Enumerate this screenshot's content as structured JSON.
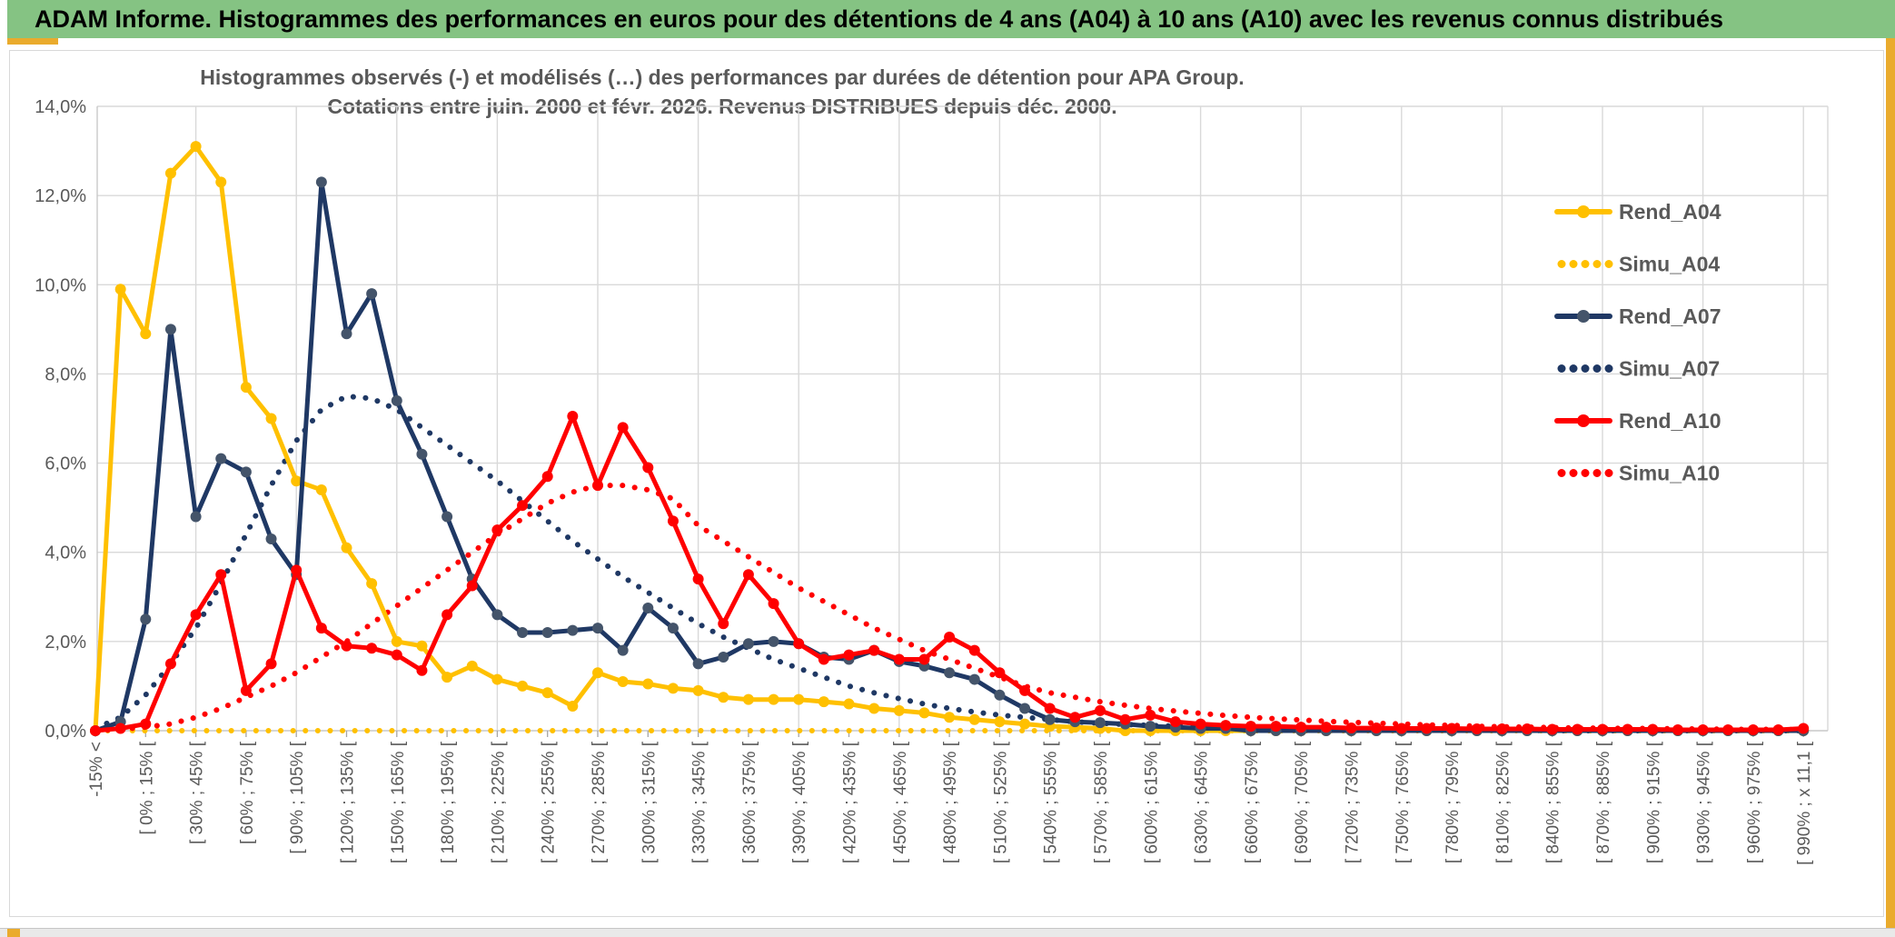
{
  "window": {
    "header_title": "ADAM Informe. Histogrammes des performances en euros pour des détentions de 4 ans (A04) à 10 ans (A10) avec les revenus connus distribués",
    "header_bg": "#85C383",
    "accent_gold": "#EAAB2D"
  },
  "chart": {
    "title_line1": "Histogrammes observés (-) et modélisés (…) des performances par durées de détention pour APA Group.",
    "title_line2": "Cotations entre juin. 2000 et févr. 2026. Revenus DISTRIBUES depuis déc. 2000.",
    "text_color": "#595959",
    "grid_color": "#D9D9D9"
  },
  "chart_data": {
    "type": "line",
    "title": "Histogrammes observés (-) et modélisés (…) des performances par durées de détention pour APA Group.",
    "subtitle": "Cotations entre juin. 2000 et févr. 2026. Revenus DISTRIBUES depuis déc. 2000.",
    "ylim": [
      0,
      14
    ],
    "y_tick_labels": [
      "0,0%",
      "2,0%",
      "4,0%",
      "6,0%",
      "8,0%",
      "10,0%",
      "12,0%",
      "14,0%"
    ],
    "grid": true,
    "legend_position": "right",
    "n_bins": 69,
    "note": "69 bins of 15% width; only every second bin carries an axis label (35 labels).",
    "categories": [
      "-15% <",
      "[ 0% ; 15% [",
      "[ 30% ; 45% [",
      "[ 60% ; 75% [",
      "[ 90% ; 105% [",
      "[ 120% ; 135% [",
      "[ 150% ; 165% [",
      "[ 180% ; 195% [",
      "[ 210% ; 225% [",
      "[ 240% ; 255% [",
      "[ 270% ; 285% [",
      "[ 300% ; 315% [",
      "[ 330% ; 345% [",
      "[ 360% ; 375% [",
      "[ 390% ; 405% [",
      "[ 420% ; 435% [",
      "[ 450% ; 465% [",
      "[ 480% ; 495% [",
      "[ 510% ; 525% [",
      "[ 540% ; 555% [",
      "[ 570% ; 585% [",
      "[ 600% ; 615% [",
      "[ 630% ; 645% [",
      "[ 660% ; 675% [",
      "[ 690% ; 705% [",
      "[ 720% ; 735% [",
      "[ 750% ; 765% [",
      "[ 780% ; 795% [",
      "[ 810% ; 825% [",
      "[ 840% ; 855% [",
      "[ 870% ; 885% [",
      "[ 900% ; 915% [",
      "[ 930% ; 945% [",
      "[ 960% ; 975% [",
      "[ 990% ; x 11,1 ["
    ],
    "series": [
      {
        "name": "Rend_A04",
        "style": "solid",
        "color": "#FFC000",
        "marker_color": "#FFC000",
        "values": [
          0,
          9.9,
          8.9,
          12.5,
          13.1,
          12.3,
          7.7,
          7.0,
          5.6,
          5.4,
          4.1,
          3.3,
          2.0,
          1.9,
          1.2,
          1.45,
          1.15,
          1.0,
          0.85,
          0.55,
          1.3,
          1.1,
          1.05,
          0.95,
          0.9,
          0.75,
          0.7,
          0.7,
          0.7,
          0.65,
          0.6,
          0.5,
          0.45,
          0.4,
          0.3,
          0.25,
          0.2,
          0.15,
          0.1,
          0.08,
          0.05,
          0,
          0,
          0,
          0,
          0,
          0,
          0,
          0,
          0,
          0,
          0,
          0,
          0,
          0,
          0,
          0,
          0,
          0,
          0,
          0,
          0,
          0,
          0,
          0,
          0,
          0,
          0,
          0
        ]
      },
      {
        "name": "Simu_A04",
        "style": "dotted",
        "color": "#FFC000",
        "marker_color": "#FFC000",
        "values": [
          0,
          0,
          0,
          0,
          0,
          0,
          0,
          0,
          0,
          0,
          0,
          0,
          0,
          0,
          0,
          0,
          0,
          0,
          0,
          0,
          0,
          0,
          0,
          0,
          0,
          0,
          0,
          0,
          0,
          0,
          0,
          0,
          0,
          0,
          0,
          0,
          0,
          0,
          0,
          0,
          0,
          0,
          0,
          0,
          0,
          0,
          0,
          0,
          0,
          0,
          0,
          0,
          0,
          0,
          0,
          0,
          0,
          0,
          0,
          0,
          0,
          0,
          0,
          0,
          0,
          0,
          0,
          0,
          0
        ]
      },
      {
        "name": "Rend_A07",
        "style": "solid",
        "color": "#1F3864",
        "marker_color": "#44546A",
        "values": [
          0,
          0.2,
          2.5,
          9.0,
          4.8,
          6.1,
          5.8,
          4.3,
          3.5,
          12.3,
          8.9,
          9.8,
          7.4,
          6.2,
          4.8,
          3.4,
          2.6,
          2.2,
          2.2,
          2.25,
          2.3,
          1.8,
          2.75,
          2.3,
          1.5,
          1.65,
          1.95,
          2.0,
          1.95,
          1.65,
          1.6,
          1.8,
          1.55,
          1.45,
          1.3,
          1.15,
          0.8,
          0.5,
          0.25,
          0.2,
          0.18,
          0.15,
          0.1,
          0.08,
          0.05,
          0.05,
          0,
          0,
          0,
          0,
          0,
          0,
          0,
          0,
          0,
          0,
          0,
          0,
          0,
          0,
          0,
          0,
          0,
          0,
          0,
          0,
          0,
          0,
          0
        ]
      },
      {
        "name": "Simu_A07",
        "style": "dotted",
        "color": "#1F3864",
        "marker_color": "#1F3864",
        "values": [
          0.05,
          0.3,
          0.8,
          1.5,
          2.3,
          3.3,
          4.4,
          5.5,
          6.5,
          7.2,
          7.5,
          7.45,
          7.2,
          6.8,
          6.4,
          6.0,
          5.6,
          5.15,
          4.7,
          4.25,
          3.85,
          3.45,
          3.1,
          2.75,
          2.4,
          2.1,
          1.85,
          1.6,
          1.4,
          1.2,
          1.0,
          0.85,
          0.72,
          0.6,
          0.5,
          0.42,
          0.35,
          0.3,
          0.25,
          0.2,
          0.17,
          0.14,
          0.12,
          0.1,
          0.08,
          0.07,
          0.05,
          0.04,
          0.04,
          0.03,
          0.03,
          0.02,
          0.02,
          0.01,
          0.01,
          0.01,
          0.01,
          0.01,
          0,
          0,
          0,
          0,
          0,
          0,
          0,
          0,
          0,
          0,
          0
        ]
      },
      {
        "name": "Rend_A10",
        "style": "solid",
        "color": "#FF0000",
        "marker_color": "#FF0000",
        "values": [
          0,
          0.05,
          0.15,
          1.5,
          2.6,
          3.5,
          0.9,
          1.5,
          3.6,
          2.3,
          1.9,
          1.85,
          1.7,
          1.35,
          2.6,
          3.25,
          4.5,
          5.05,
          5.7,
          7.05,
          5.5,
          6.8,
          5.9,
          4.7,
          3.4,
          2.4,
          3.5,
          2.85,
          1.95,
          1.6,
          1.7,
          1.8,
          1.6,
          1.6,
          2.1,
          1.8,
          1.3,
          0.9,
          0.5,
          0.3,
          0.45,
          0.25,
          0.35,
          0.2,
          0.15,
          0.12,
          0.1,
          0.1,
          0.08,
          0.08,
          0.06,
          0.06,
          0.05,
          0.05,
          0.05,
          0.04,
          0.04,
          0.04,
          0.03,
          0.03,
          0.03,
          0.03,
          0.03,
          0.02,
          0.02,
          0.02,
          0.02,
          0.02,
          0.05
        ]
      },
      {
        "name": "Simu_A10",
        "style": "dotted",
        "color": "#FF0000",
        "marker_color": "#FF0000",
        "values": [
          0,
          0.03,
          0.08,
          0.15,
          0.3,
          0.5,
          0.75,
          1.0,
          1.3,
          1.65,
          2.0,
          2.4,
          2.8,
          3.2,
          3.6,
          4.0,
          4.4,
          4.75,
          5.1,
          5.35,
          5.5,
          5.5,
          5.4,
          5.2,
          4.6,
          4.25,
          3.9,
          3.55,
          3.2,
          2.9,
          2.6,
          2.3,
          2.05,
          1.8,
          1.6,
          1.4,
          1.2,
          1.0,
          0.85,
          0.75,
          0.65,
          0.57,
          0.5,
          0.44,
          0.39,
          0.34,
          0.3,
          0.27,
          0.24,
          0.21,
          0.19,
          0.17,
          0.15,
          0.13,
          0.12,
          0.1,
          0.09,
          0.08,
          0.07,
          0.06,
          0.06,
          0.05,
          0.05,
          0.04,
          0.04,
          0.03,
          0.03,
          0.03,
          0.02
        ]
      }
    ],
    "legend_order": [
      "Rend_A04",
      "Simu_A04",
      "Rend_A07",
      "Simu_A07",
      "Rend_A10",
      "Simu_A10"
    ]
  }
}
